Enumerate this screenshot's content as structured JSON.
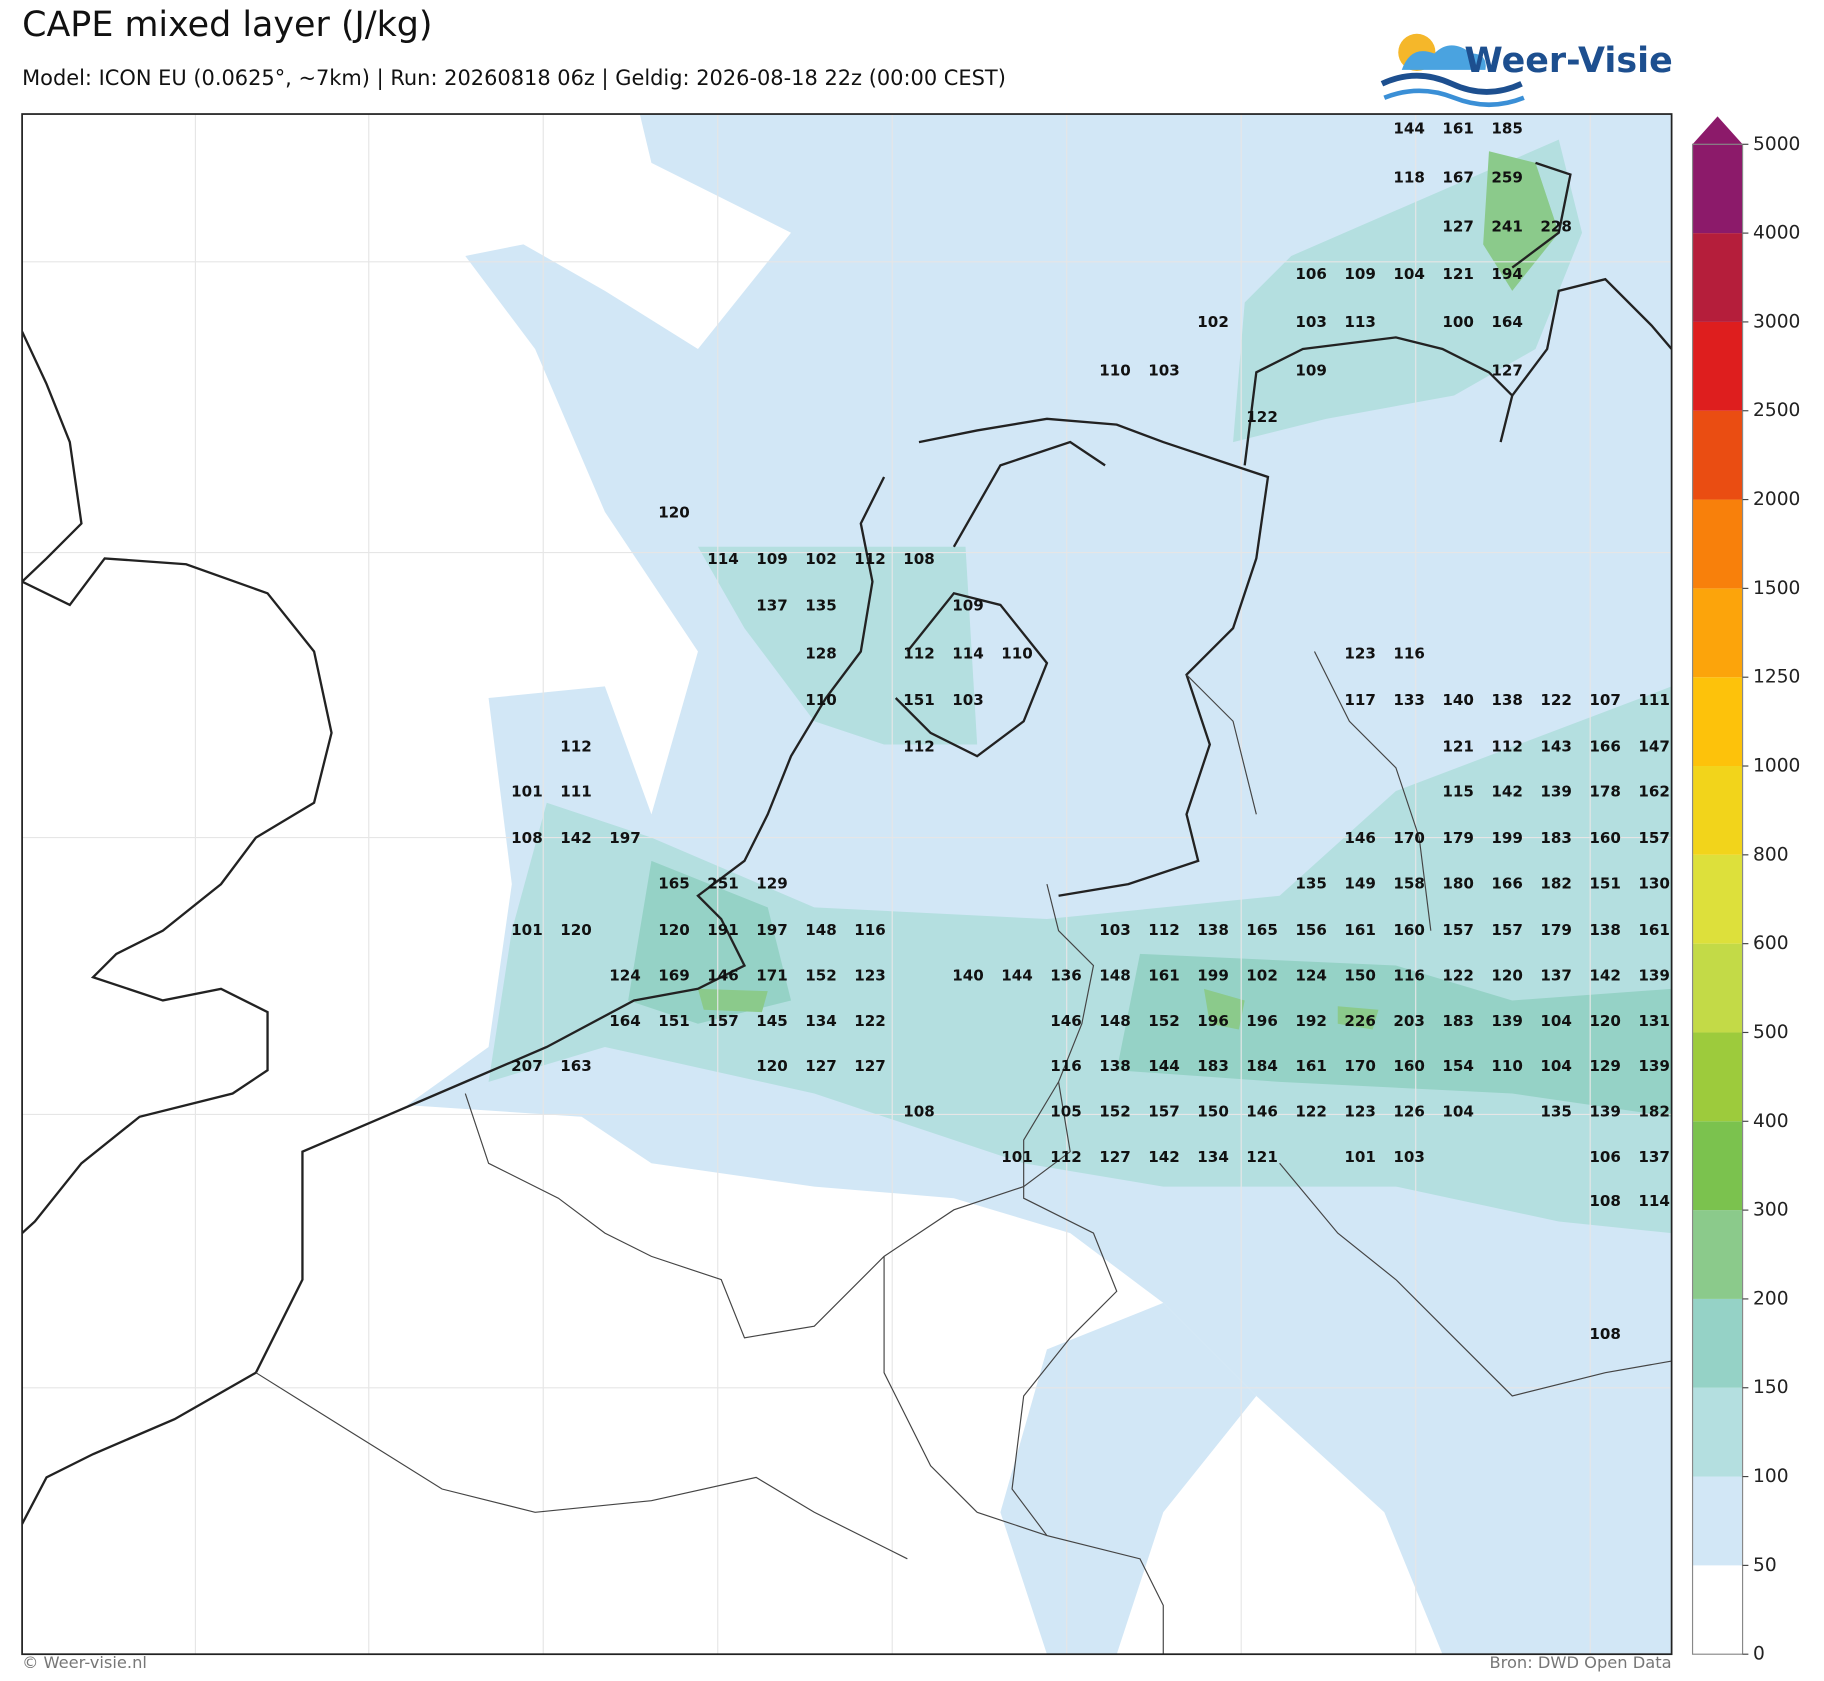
{
  "header": {
    "title": "CAPE mixed layer (J/kg)",
    "subtitle": "Model: ICON EU (0.0625°, ~7km)  |  Run: 20260818 06z  |  Geldig: 2026-08-18 22z (00:00 CEST)"
  },
  "logo": "Weer-Visie",
  "map": {
    "labels": [
      [
        null,
        null,
        null,
        null,
        null,
        null,
        null,
        null,
        null,
        null,
        null,
        null,
        null,
        null,
        null,
        null,
        null,
        null,
        144,
        161,
        185,
        null,
        null,
        null
      ],
      [
        null,
        null,
        null,
        null,
        null,
        null,
        null,
        null,
        null,
        null,
        null,
        null,
        null,
        null,
        null,
        null,
        null,
        null,
        118,
        167,
        259,
        null,
        null,
        null
      ],
      [
        null,
        null,
        null,
        null,
        null,
        null,
        null,
        null,
        null,
        null,
        null,
        null,
        null,
        null,
        null,
        null,
        null,
        null,
        null,
        127,
        241,
        228,
        null,
        null
      ],
      [
        null,
        null,
        null,
        null,
        null,
        null,
        null,
        null,
        null,
        null,
        null,
        null,
        null,
        null,
        null,
        null,
        106,
        109,
        104,
        121,
        194,
        null,
        null,
        null
      ],
      [
        null,
        null,
        null,
        null,
        null,
        null,
        null,
        null,
        null,
        null,
        null,
        null,
        null,
        null,
        102,
        null,
        103,
        113,
        null,
        100,
        164,
        null,
        null,
        null
      ],
      [
        null,
        null,
        null,
        null,
        null,
        null,
        null,
        null,
        null,
        null,
        null,
        null,
        110,
        103,
        null,
        null,
        109,
        null,
        null,
        null,
        127,
        null,
        null,
        null
      ],
      [
        null,
        null,
        null,
        null,
        null,
        null,
        null,
        null,
        null,
        null,
        null,
        null,
        null,
        null,
        null,
        122,
        null,
        null,
        null,
        null,
        null,
        null,
        null,
        null
      ],
      [
        null,
        null,
        null,
        120,
        null,
        null,
        null,
        null,
        null,
        null,
        null,
        null,
        null,
        null,
        null,
        null,
        null,
        null,
        null,
        null,
        null,
        null,
        null,
        null
      ],
      [
        null,
        null,
        null,
        null,
        114,
        109,
        102,
        112,
        108,
        null,
        null,
        null,
        null,
        null,
        null,
        null,
        null,
        null,
        null,
        null,
        null,
        null,
        null,
        null
      ],
      [
        null,
        null,
        null,
        null,
        null,
        137,
        135,
        null,
        null,
        109,
        null,
        null,
        null,
        null,
        null,
        null,
        null,
        null,
        null,
        null,
        null,
        null,
        null,
        null
      ],
      [
        null,
        null,
        null,
        null,
        null,
        null,
        128,
        null,
        112,
        114,
        110,
        null,
        null,
        null,
        null,
        null,
        null,
        123,
        116,
        null,
        null,
        null,
        null,
        null
      ],
      [
        null,
        null,
        null,
        null,
        null,
        null,
        110,
        null,
        151,
        103,
        null,
        null,
        null,
        null,
        null,
        null,
        null,
        117,
        133,
        140,
        138,
        122,
        107,
        111
      ],
      [
        null,
        112,
        null,
        null,
        null,
        null,
        null,
        null,
        112,
        null,
        null,
        null,
        null,
        null,
        null,
        null,
        null,
        null,
        null,
        121,
        112,
        143,
        166,
        147
      ],
      [
        101,
        111,
        null,
        null,
        null,
        null,
        null,
        null,
        null,
        null,
        null,
        null,
        null,
        null,
        null,
        null,
        null,
        null,
        null,
        115,
        142,
        139,
        178,
        162
      ],
      [
        108,
        142,
        197,
        null,
        null,
        null,
        null,
        null,
        null,
        null,
        null,
        null,
        null,
        null,
        null,
        null,
        null,
        146,
        170,
        179,
        199,
        183,
        160,
        157
      ],
      [
        null,
        null,
        null,
        165,
        251,
        129,
        null,
        null,
        null,
        null,
        null,
        null,
        null,
        null,
        null,
        null,
        135,
        149,
        158,
        180,
        166,
        182,
        151,
        130
      ],
      [
        101,
        120,
        null,
        120,
        191,
        197,
        148,
        116,
        null,
        null,
        null,
        null,
        103,
        112,
        138,
        165,
        156,
        161,
        160,
        157,
        157,
        179,
        138,
        161
      ],
      [
        null,
        null,
        124,
        169,
        146,
        171,
        152,
        123,
        null,
        140,
        144,
        136,
        148,
        161,
        199,
        102,
        124,
        150,
        116,
        122,
        120,
        137,
        142,
        139
      ],
      [
        null,
        null,
        164,
        151,
        157,
        145,
        134,
        122,
        null,
        null,
        null,
        146,
        148,
        152,
        196,
        196,
        192,
        226,
        203,
        183,
        139,
        104,
        120,
        131
      ],
      [
        207,
        163,
        null,
        null,
        null,
        120,
        127,
        127,
        null,
        null,
        null,
        116,
        138,
        144,
        183,
        184,
        161,
        170,
        160,
        154,
        110,
        104,
        129,
        139
      ],
      [
        null,
        null,
        null,
        null,
        null,
        null,
        null,
        null,
        108,
        null,
        null,
        105,
        152,
        157,
        150,
        146,
        122,
        123,
        126,
        104,
        null,
        135,
        139,
        182
      ],
      [
        null,
        null,
        null,
        null,
        null,
        null,
        null,
        null,
        null,
        null,
        101,
        112,
        127,
        142,
        134,
        121,
        null,
        101,
        103,
        null,
        null,
        null,
        106,
        137
      ],
      [
        null,
        null,
        null,
        null,
        null,
        null,
        null,
        null,
        null,
        null,
        null,
        null,
        null,
        null,
        null,
        null,
        null,
        null,
        null,
        null,
        null,
        null,
        108,
        114
      ],
      [
        null,
        null,
        null,
        null,
        null,
        null,
        null,
        null,
        null,
        null,
        null,
        null,
        null,
        null,
        null,
        null,
        null,
        null,
        null,
        null,
        null,
        null,
        108,
        null
      ]
    ]
  },
  "colorbar": {
    "ticks": [
      0,
      50,
      100,
      150,
      200,
      300,
      400,
      500,
      600,
      800,
      1000,
      1250,
      1500,
      2000,
      2500,
      3000,
      4000,
      5000
    ],
    "colors": [
      "#ffffff",
      "#d2e7f6",
      "#b4dfe0",
      "#95d2c6",
      "#8bca8b",
      "#7bc24e",
      "#9dcb3c",
      "#c3da47",
      "#dde03b",
      "#f2d41b",
      "#fdc20b",
      "#fca40b",
      "#f8800b",
      "#ea4d12",
      "#de1e1e",
      "#b51e3b",
      "#8c1a6a"
    ]
  },
  "footer": {
    "left": "© Weer-visie.nl",
    "right": "Bron: DWD Open Data"
  }
}
